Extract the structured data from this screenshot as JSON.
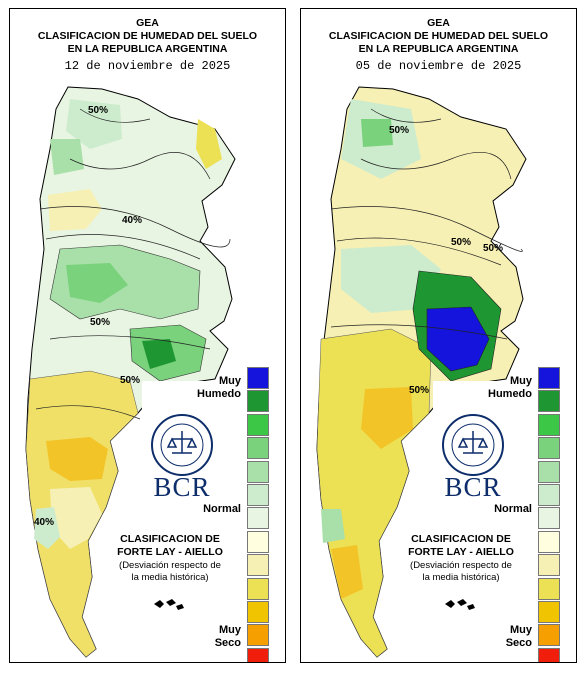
{
  "header": {
    "org": "GEA",
    "title_line1": "CLASIFICACION DE HUMEDAD DEL SUELO",
    "title_line2": "EN LA REPUBLICA ARGENTINA"
  },
  "panels": [
    {
      "date": "12 de noviembre de 2025",
      "contour_labels": [
        "50%",
        "40%",
        "50%",
        "50%",
        "40%"
      ]
    },
    {
      "date": "05 de noviembre de 2025",
      "contour_labels": [
        "50%",
        "50%",
        "50%",
        "50%"
      ]
    }
  ],
  "legend": {
    "wet_label": "Muy Humedo",
    "normal_label": "Normal",
    "dry_label": "Muy Seco",
    "classification_line1": "CLASIFICACION DE",
    "classification_line2": "FORTE LAY - AIELLO",
    "deviation_line1": "(Desviación respecto de",
    "deviation_line2": "la media histórica)",
    "colors": [
      "#1414dc",
      "#1e9632",
      "#3cc846",
      "#7ad27c",
      "#a9e0a9",
      "#cdeccd",
      "#e8f5e2",
      "#ffffe0",
      "#f7f0b4",
      "#ece154",
      "#f0c400",
      "#f5a000",
      "#f01e0a"
    ],
    "logo_text": "BCR",
    "seal_text": "BOLSA DE COMERCIO DE ROSARIO"
  }
}
